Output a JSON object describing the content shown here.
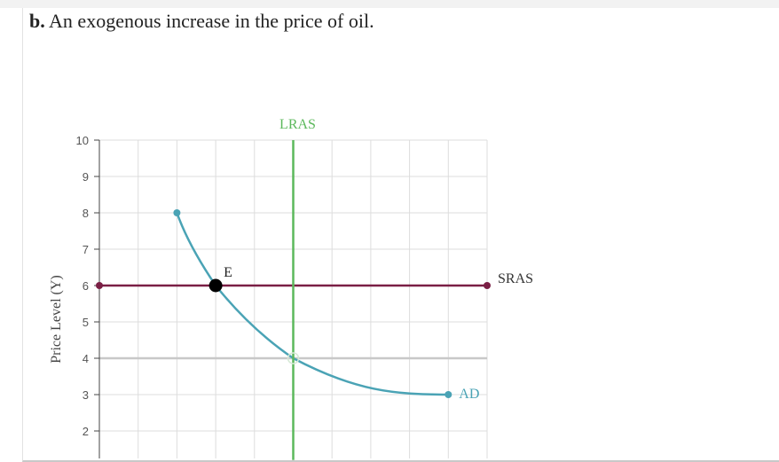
{
  "question": {
    "prefix": "b.",
    "text": "An exogenous increase in the price of oil."
  },
  "chart_data": {
    "type": "line",
    "ylabel": "Price Level (Y)",
    "xlabel": "",
    "ylim": [
      1.2,
      10
    ],
    "xlim": [
      0,
      10
    ],
    "yticks": [
      2,
      3,
      4,
      5,
      6,
      7,
      8,
      9,
      10
    ],
    "grid": true,
    "series": [
      {
        "name": "AD",
        "color": "#4aa3b5",
        "points": [
          [
            2,
            8
          ],
          [
            3,
            6
          ],
          [
            5,
            4
          ],
          [
            9,
            3
          ]
        ],
        "label_at": [
          9,
          3
        ]
      },
      {
        "name": "SRAS",
        "color": "#7a1f45",
        "points": [
          [
            0,
            6
          ],
          [
            10,
            6
          ]
        ],
        "label_at": [
          10,
          6
        ]
      },
      {
        "name": "LRAS",
        "color": "#5cb85c",
        "points": [
          [
            5,
            1.2
          ],
          [
            5,
            10
          ]
        ],
        "label_at": [
          5,
          10
        ]
      }
    ],
    "annotations": [
      {
        "label": "E",
        "x": 3,
        "y": 6
      }
    ],
    "reference_line": {
      "y": 4,
      "color": "#c8c8c8"
    },
    "open_marker": {
      "x": 5,
      "y": 4
    }
  },
  "colors": {
    "grid": "#dddddd",
    "axis": "#444444",
    "equilibrium": "#000000"
  }
}
